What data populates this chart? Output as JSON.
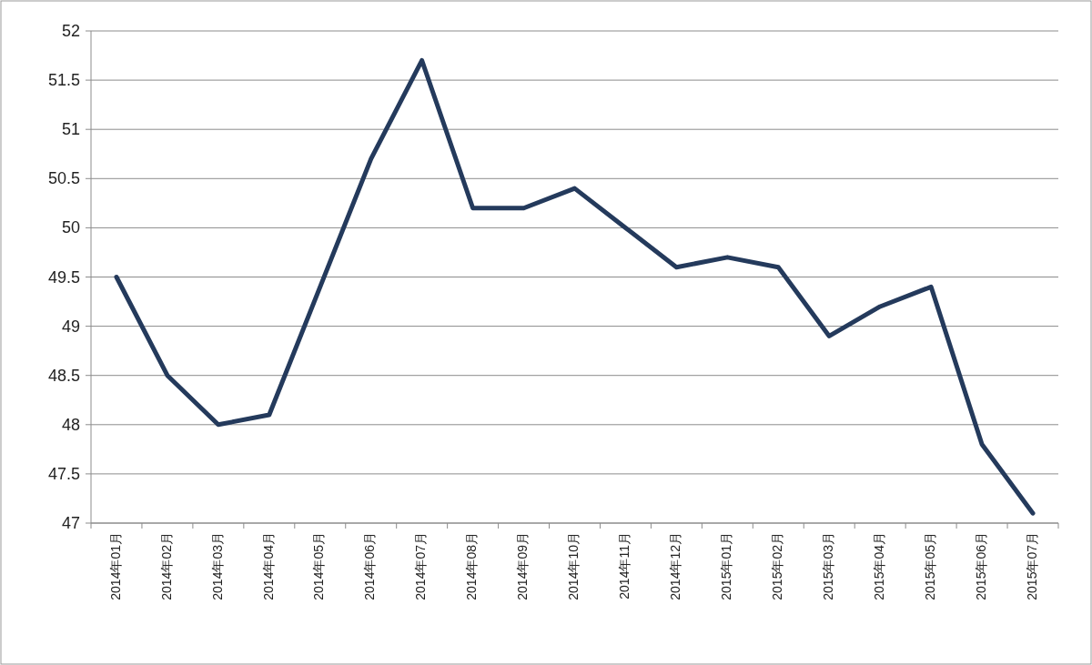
{
  "chart_data": {
    "type": "line",
    "categories": [
      "2014年01月",
      "2014年02月",
      "2014年03月",
      "2014年04月",
      "2014年05月",
      "2014年06月",
      "2014年07月",
      "2014年08月",
      "2014年09月",
      "2014年10月",
      "2014年11月",
      "2014年12月",
      "2015年01月",
      "2015年02月",
      "2015年03月",
      "2015年04月",
      "2015年05月",
      "2015年06月",
      "2015年07月"
    ],
    "series": [
      {
        "color": "#243a5c",
        "values": [
          49.5,
          48.5,
          48.0,
          48.1,
          49.4,
          50.7,
          51.7,
          50.2,
          50.2,
          50.4,
          50.0,
          49.6,
          49.7,
          49.6,
          48.9,
          49.2,
          49.4,
          47.8,
          47.1
        ]
      }
    ],
    "ylim": [
      47,
      52
    ],
    "yticks": [
      47,
      47.5,
      48,
      48.5,
      49,
      49.5,
      50,
      50.5,
      51,
      51.5,
      52
    ],
    "grid": "y"
  }
}
